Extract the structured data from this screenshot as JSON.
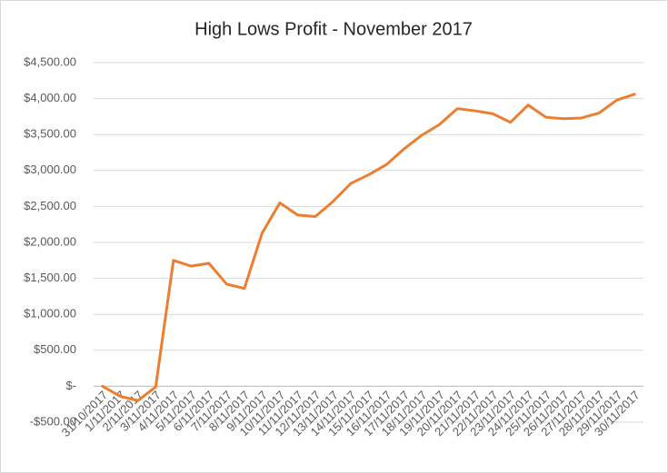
{
  "chart_data": {
    "type": "line",
    "title": "High Lows Profit - November 2017",
    "categories": [
      "31/10/2017",
      "1/11/2017",
      "2/11/2017",
      "3/11/2017",
      "4/11/2017",
      "5/11/2017",
      "6/11/2017",
      "7/11/2017",
      "8/11/2017",
      "9/11/2017",
      "10/11/2017",
      "11/11/2017",
      "12/11/2017",
      "13/11/2017",
      "14/11/2017",
      "15/11/2017",
      "16/11/2017",
      "17/11/2017",
      "18/11/2017",
      "19/11/2017",
      "20/11/2017",
      "21/11/2017",
      "22/11/2017",
      "23/11/2017",
      "24/11/2017",
      "25/11/2017",
      "26/11/2017",
      "27/11/2017",
      "28/11/2017",
      "29/11/2017",
      "30/11/2017"
    ],
    "values": [
      0,
      -140,
      -200,
      -10,
      1750,
      1670,
      1710,
      1420,
      1360,
      2130,
      2550,
      2380,
      2360,
      2570,
      2820,
      2940,
      3080,
      3300,
      3490,
      3640,
      3860,
      3830,
      3790,
      3670,
      3910,
      3740,
      3720,
      3730,
      3800,
      3980,
      4060
    ],
    "color": "#ed7d31",
    "ylim": [
      -500,
      4500
    ],
    "yticks": [
      {
        "value": -500,
        "label": "-$500.00"
      },
      {
        "value": 0,
        "label": "$-"
      },
      {
        "value": 500,
        "label": "$500.00"
      },
      {
        "value": 1000,
        "label": "$1,000.00"
      },
      {
        "value": 1500,
        "label": "$1,500.00"
      },
      {
        "value": 2000,
        "label": "$2,000.00"
      },
      {
        "value": 2500,
        "label": "$2,500.00"
      },
      {
        "value": 3000,
        "label": "$3,000.00"
      },
      {
        "value": 3500,
        "label": "$3,500.00"
      },
      {
        "value": 4000,
        "label": "$4,000.00"
      },
      {
        "value": 4500,
        "label": "$4,500.00"
      }
    ],
    "grid": true
  }
}
